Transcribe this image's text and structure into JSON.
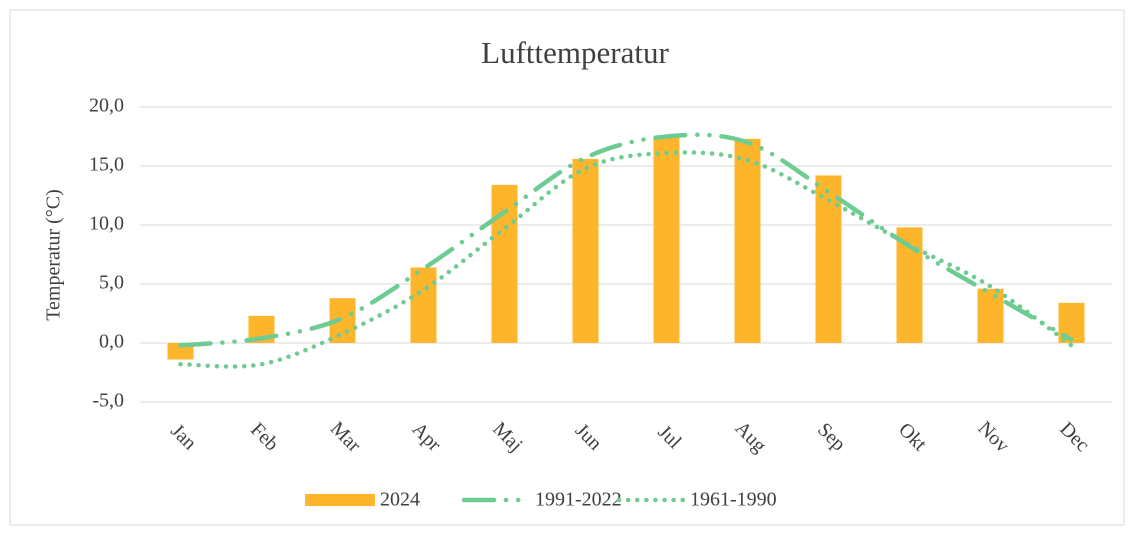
{
  "chart_data": {
    "type": "bar-line",
    "title": "Lufttemperatur",
    "y_label": "Temperatur (°C)",
    "categories": [
      "Jan",
      "Feb",
      "Mar",
      "Apr",
      "Maj",
      "Jun",
      "Jul",
      "Aug",
      "Sep",
      "Okt",
      "Nov",
      "Dec"
    ],
    "series": [
      {
        "name": "2024",
        "type": "bar",
        "color": "#fdb62b",
        "values": [
          -1.4,
          2.3,
          3.8,
          6.4,
          13.4,
          15.6,
          17.5,
          17.3,
          14.2,
          9.8,
          4.6,
          3.4
        ]
      },
      {
        "name": "1991-2022",
        "type": "line",
        "style": "dash-dot",
        "color": "#6ecb91",
        "values": [
          -0.2,
          0.4,
          2.1,
          6.3,
          11.1,
          15.7,
          17.5,
          17.0,
          12.8,
          8.2,
          4.2,
          0.3
        ]
      },
      {
        "name": "1961-1990",
        "type": "line",
        "style": "dotted",
        "color": "#6ecb91",
        "values": [
          -1.8,
          -1.8,
          0.8,
          4.5,
          9.7,
          14.8,
          16.1,
          15.5,
          12.1,
          8.3,
          4.8,
          -0.2
        ]
      }
    ],
    "ylim": [
      -5,
      20
    ],
    "yticks": [
      {
        "value": -5,
        "label": "-5,0"
      },
      {
        "value": 0,
        "label": "0,0"
      },
      {
        "value": 5,
        "label": "5,0"
      },
      {
        "value": 10,
        "label": "10,0"
      },
      {
        "value": 15,
        "label": "15,0"
      },
      {
        "value": 20,
        "label": "20,0"
      }
    ],
    "grid": true,
    "legend": "bottom"
  }
}
